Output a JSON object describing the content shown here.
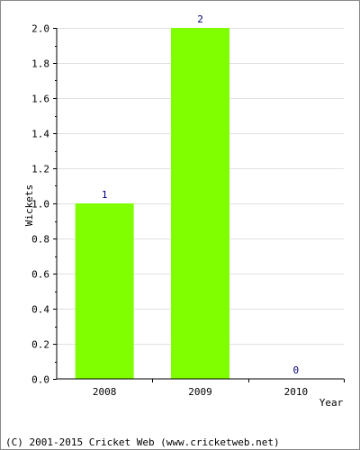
{
  "chart_data": {
    "type": "bar",
    "categories": [
      "2008",
      "2009",
      "2010"
    ],
    "values": [
      1,
      2,
      0
    ],
    "data_labels": [
      "1",
      "2",
      "0"
    ],
    "xlabel": "Year",
    "ylabel": "Wickets",
    "ylim": [
      0,
      2.0
    ],
    "y_ticks": [
      "0.0",
      "0.2",
      "0.4",
      "0.6",
      "0.8",
      "1.0",
      "1.2",
      "1.4",
      "1.6",
      "1.8",
      "2.0"
    ],
    "grid": true,
    "bar_color": "#80ff00",
    "grid_color": "#e0e0e0",
    "label_color": "#000080"
  },
  "footer": {
    "copyright": "(C) 2001-2015 Cricket Web (www.cricketweb.net)"
  }
}
